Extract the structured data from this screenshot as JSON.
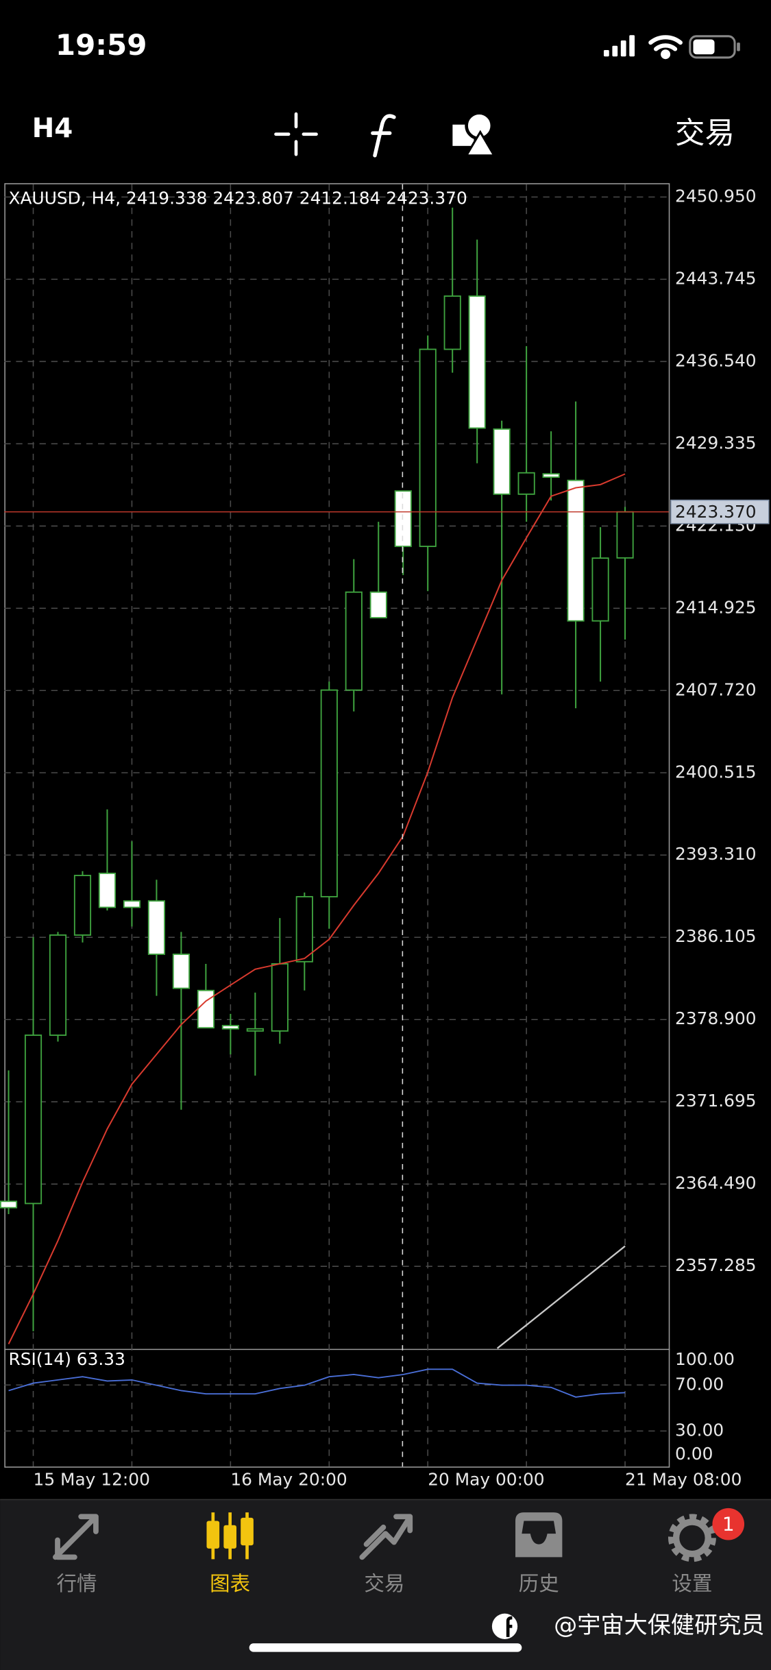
{
  "status_bar": {
    "time": "19:59"
  },
  "toolbar": {
    "timeframe": "H4",
    "trade": "交易"
  },
  "chart_data": {
    "type": "candlestick",
    "title": "XAUUSD, H4, 2419.338 2423.807 2412.184 2423.370",
    "categories": [
      null,
      "15 May 12:00",
      null,
      null,
      null,
      null,
      null,
      null,
      null,
      "16 May 20:00",
      null,
      null,
      null,
      null,
      null,
      null,
      null,
      "20 May 00:00",
      null,
      null,
      null,
      null,
      null,
      null,
      null,
      "21 May 08:00"
    ],
    "open": [
      2362.98,
      2362.79,
      2377.53,
      2386.3,
      2391.71,
      2389.29,
      2389.29,
      2384.62,
      2381.45,
      2378.37,
      2377.9,
      2377.9,
      2383.97,
      2389.66,
      2407.76,
      2416.34,
      2425.2,
      2420.35,
      2437.61,
      2442.27,
      2430.62,
      2424.92,
      2426.7,
      2426.13,
      2413.82,
      2419.338
    ],
    "high": [
      2374.45,
      2386.11,
      2386.58,
      2391.9,
      2397.31,
      2394.51,
      2391.15,
      2386.58,
      2383.78,
      2379.4,
      2381.26,
      2387.79,
      2390.03,
      2408.5,
      2419.23,
      2422.5,
      2425.2,
      2438.82,
      2450.02,
      2447.22,
      2431.36,
      2437.89,
      2430.43,
      2433.04,
      2422.03,
      2423.807
    ],
    "low": [
      2361.86,
      2351.6,
      2376.97,
      2385.65,
      2388.45,
      2387.05,
      2380.98,
      2371.0,
      2378.18,
      2375.85,
      2373.99,
      2376.78,
      2381.45,
      2386.86,
      2405.89,
      2414.1,
      2417.83,
      2416.43,
      2435.56,
      2427.63,
      2407.38,
      2422.5,
      2424.36,
      2406.17,
      2408.5,
      2412.184
    ],
    "close": [
      2362.42,
      2377.53,
      2386.3,
      2391.52,
      2388.73,
      2388.73,
      2384.62,
      2381.64,
      2378.18,
      2378.09,
      2378.09,
      2383.78,
      2389.66,
      2407.76,
      2416.34,
      2414.1,
      2420.35,
      2437.61,
      2442.27,
      2430.71,
      2424.92,
      2426.79,
      2426.41,
      2413.82,
      2419.32,
      2423.37
    ],
    "candle_color": "#3fa33f",
    "bull_fill": "#000000",
    "bear_fill": "#ffffff",
    "ylim": [
      2350.1,
      2452.16
    ],
    "yticks": [
      {
        "value": 2450.95,
        "label": "2450.950"
      },
      2443.745,
      {
        "value": 2436.54,
        "label": "2436.540"
      },
      2429.335,
      {
        "value": 2422.13,
        "label": "2422.130"
      },
      2414.925,
      {
        "value": 2407.72,
        "label": "2407.720"
      },
      2400.515,
      {
        "value": 2393.31,
        "label": "2393.310"
      },
      2386.105,
      {
        "value": 2378.9,
        "label": "2378.900"
      },
      2371.695,
      {
        "value": 2364.49,
        "label": "2364.490"
      },
      2357.285
    ],
    "grid": true,
    "current_price": {
      "value": 2423.37,
      "label": "2423.370",
      "color": "#c0392b"
    },
    "ma": {
      "color": "#d83a2e",
      "values": [
        2350.48,
        2354.86,
        2359.53,
        2364.66,
        2369.32,
        2373.24,
        2375.85,
        2378.46,
        2380.52,
        2381.92,
        2383.31,
        2383.78,
        2384.25,
        2385.93,
        2388.91,
        2391.71,
        2394.98,
        2400.57,
        2407.1,
        2412.23,
        2417.37,
        2421.1,
        2424.74,
        2425.48,
        2425.76,
        2426.69
      ]
    },
    "rsi": {
      "label": "RSI(14) 63.33",
      "color": "#4a6fd8",
      "values": [
        65.1,
        71.6,
        74.4,
        77.2,
        73.5,
        74.4,
        69.8,
        65.1,
        62.3,
        62.3,
        62.3,
        67.0,
        69.8,
        77.2,
        79.1,
        76.3,
        79.1,
        83.7,
        83.7,
        71.6,
        69.8,
        69.8,
        67.9,
        59.5,
        62.3,
        63.33
      ],
      "ylim": [
        0,
        100
      ],
      "yticks": [
        {
          "value": 100,
          "label": "100.00"
        },
        {
          "value": 70,
          "label": "70.00"
        },
        {
          "value": 30,
          "label": "30.00"
        },
        {
          "value": 0,
          "label": "0.00"
        }
      ]
    }
  },
  "tab_bar": {
    "tabs": [
      "行情",
      "图表",
      "交易",
      "历史",
      "设置"
    ],
    "selected": 1,
    "active_color": "#f2c40f",
    "badge": 1
  },
  "watermark": "@宇宙大保健研究员"
}
